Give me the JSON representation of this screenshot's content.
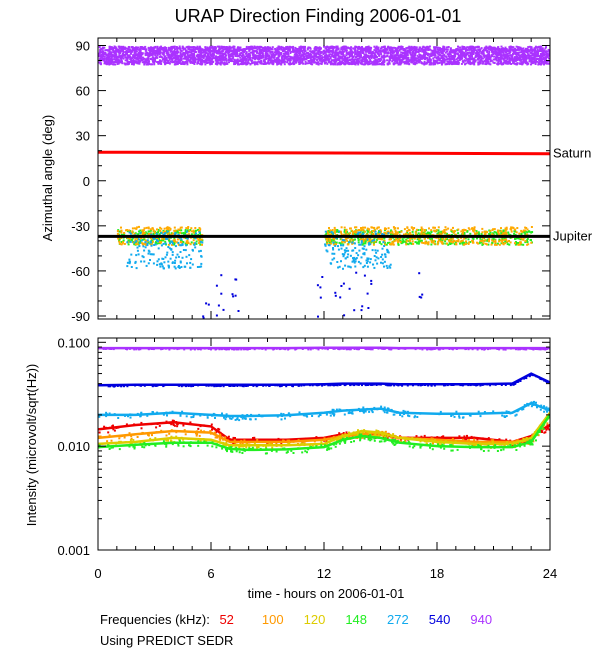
{
  "chart_data": [
    {
      "type": "scatter",
      "title": "URAP Direction Finding  2006-01-01",
      "ylabel": "Azimuthal angle (deg)",
      "xlim": [
        0,
        24
      ],
      "ylim": [
        -92,
        95
      ],
      "yticks": [
        90,
        60,
        30,
        0,
        -30,
        -60,
        -90
      ],
      "tick_labels": [
        "90",
        "60",
        "30",
        "0",
        "-30",
        "-60",
        "-90"
      ],
      "reference_lines": [
        {
          "name": "Saturn",
          "color": "#ff0000",
          "y_start": 19,
          "y_end": 18
        },
        {
          "name": "Jupiter",
          "color": "#000000",
          "y_start": -37,
          "y_end": -37
        }
      ],
      "series": [
        {
          "freq": "940",
          "color": "#aa33ff",
          "band": [
            78,
            90
          ],
          "x_range": [
            0,
            24
          ]
        },
        {
          "freq": "148",
          "color": "#22ee22",
          "band": [
            -42,
            -32
          ],
          "x_ranges": [
            [
              1,
              5.5
            ],
            [
              12,
              23
            ]
          ]
        },
        {
          "freq": "120",
          "color": "#ffaa00",
          "band": [
            -42,
            -30
          ],
          "x_ranges": [
            [
              1,
              5.5
            ],
            [
              12,
              23
            ]
          ]
        },
        {
          "freq": "272",
          "color": "#11aaee",
          "band": [
            -58,
            -33
          ],
          "x_ranges": [
            [
              1.5,
              5.5
            ],
            [
              12,
              15.5
            ]
          ]
        },
        {
          "freq": "540",
          "color": "#0000dd",
          "band": [
            -92,
            -60
          ],
          "x_ranges": [
            [
              5.5,
              7.5
            ],
            [
              11.5,
              14.5
            ],
            [
              17,
              17.5
            ]
          ]
        }
      ]
    },
    {
      "type": "line",
      "xlabel": "time - hours on 2006-01-01",
      "ylabel": "Intensity (microvolt/sqrt(Hz))",
      "yscale": "log",
      "ylim": [
        0.001,
        0.11
      ],
      "yticks": [
        0.1,
        0.01,
        0.001
      ],
      "tick_labels": [
        "0.100",
        "0.010",
        "0.001"
      ],
      "x": [
        0,
        2,
        4,
        6,
        7,
        8,
        10,
        12,
        13,
        14,
        15,
        16,
        18,
        20,
        22,
        23,
        24
      ],
      "series": [
        {
          "name": "52",
          "color": "#ee0000",
          "values": [
            0.0145,
            0.016,
            0.017,
            0.0155,
            0.0115,
            0.0115,
            0.0115,
            0.012,
            0.013,
            0.013,
            0.013,
            0.012,
            0.012,
            0.012,
            0.011,
            0.0125,
            0.016
          ]
        },
        {
          "name": "100",
          "color": "#ff9900",
          "values": [
            0.012,
            0.013,
            0.014,
            0.0135,
            0.011,
            0.011,
            0.011,
            0.0115,
            0.0125,
            0.013,
            0.0135,
            0.012,
            0.0115,
            0.011,
            0.011,
            0.0115,
            0.02
          ]
        },
        {
          "name": "120",
          "color": "#ddcc00",
          "values": [
            0.0105,
            0.011,
            0.012,
            0.0115,
            0.0102,
            0.0102,
            0.0102,
            0.0105,
            0.0125,
            0.014,
            0.0135,
            0.012,
            0.011,
            0.0105,
            0.0105,
            0.012,
            0.021
          ]
        },
        {
          "name": "148",
          "color": "#22ee22",
          "values": [
            0.0098,
            0.0103,
            0.0108,
            0.0108,
            0.0094,
            0.0092,
            0.0093,
            0.0098,
            0.0115,
            0.0125,
            0.012,
            0.0108,
            0.01,
            0.0098,
            0.0098,
            0.011,
            0.02
          ]
        },
        {
          "name": "272",
          "color": "#11aaee",
          "values": [
            0.02,
            0.02,
            0.021,
            0.02,
            0.0195,
            0.0195,
            0.0198,
            0.021,
            0.022,
            0.0225,
            0.023,
            0.021,
            0.0205,
            0.0205,
            0.021,
            0.026,
            0.022
          ]
        },
        {
          "name": "540",
          "color": "#0000dd",
          "values": [
            0.0385,
            0.039,
            0.039,
            0.039,
            0.039,
            0.039,
            0.039,
            0.0395,
            0.04,
            0.04,
            0.04,
            0.0395,
            0.0395,
            0.0395,
            0.04,
            0.05,
            0.041
          ]
        },
        {
          "name": "940",
          "color": "#aa33ff",
          "values": [
            0.088,
            0.088,
            0.088,
            0.088,
            0.088,
            0.088,
            0.088,
            0.0885,
            0.0885,
            0.0885,
            0.0885,
            0.088,
            0.088,
            0.088,
            0.088,
            0.088,
            0.088
          ]
        }
      ]
    }
  ],
  "x_ticks": [
    0,
    6,
    12,
    18,
    24
  ],
  "x_tick_labels": [
    "0",
    "6",
    "12",
    "18",
    "24"
  ],
  "legend": {
    "label": "Frequencies (kHz):",
    "entries": [
      {
        "text": "52",
        "color": "#ee0000"
      },
      {
        "text": "100",
        "color": "#ff9900"
      },
      {
        "text": "120",
        "color": "#ddcc00"
      },
      {
        "text": "148",
        "color": "#22ee22"
      },
      {
        "text": "272",
        "color": "#11aaee"
      },
      {
        "text": "540",
        "color": "#0000dd"
      },
      {
        "text": "940",
        "color": "#aa33ff"
      }
    ]
  },
  "footnote": "Using PREDICT SEDR"
}
